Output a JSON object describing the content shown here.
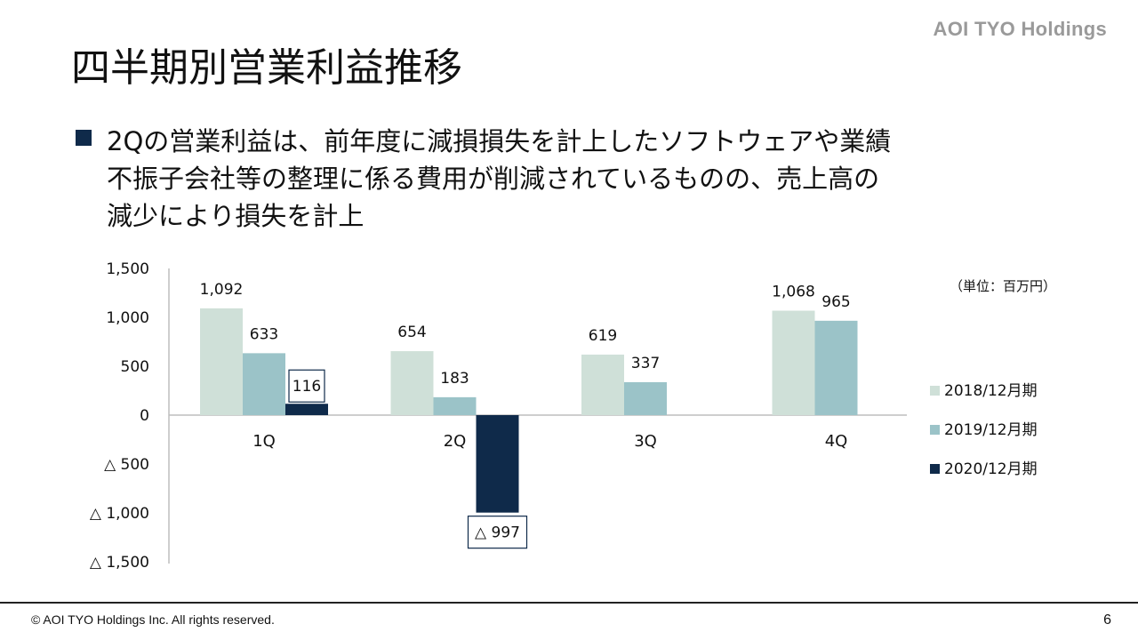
{
  "header": {
    "brand": "AOI TYO Holdings",
    "title": "四半期別営業利益推移"
  },
  "bullet": {
    "text": "2Qの営業利益は、前年度に減損損失を計上したソフトウェアや業績\n不振子会社等の整理に係る費用が削減されているものの、売上高の\n減少により損失を計上"
  },
  "chart_data": {
    "type": "bar",
    "unit_note": "（単位：百万円）",
    "categories": [
      "1Q",
      "2Q",
      "3Q",
      "4Q"
    ],
    "ylim": [
      -1500,
      1500
    ],
    "yticks": [
      1500,
      1000,
      500,
      0,
      -500,
      -1000,
      -1500
    ],
    "ytick_labels": [
      "1,500",
      "1,000",
      "500",
      "0",
      "△ 500",
      "△ 1,000",
      "△ 1,500"
    ],
    "legend_position": "right",
    "series": [
      {
        "name": "2018/12月期",
        "color": "#cfe0d8",
        "values": [
          1092,
          654,
          619,
          1068
        ],
        "labels": [
          "1,092",
          "654",
          "619",
          "1,068"
        ]
      },
      {
        "name": "2019/12月期",
        "color": "#9bc3c8",
        "values": [
          633,
          183,
          337,
          965
        ],
        "labels": [
          "633",
          "183",
          "337",
          "965"
        ]
      },
      {
        "name": "2020/12月期",
        "color": "#0f2a4a",
        "values": [
          116,
          -997,
          null,
          null
        ],
        "labels": [
          "116",
          "△ 997",
          "",
          ""
        ],
        "boxed_labels": true
      }
    ]
  },
  "footer": {
    "copyright": "© AOI TYO Holdings Inc. All rights reserved.",
    "page": "6"
  }
}
